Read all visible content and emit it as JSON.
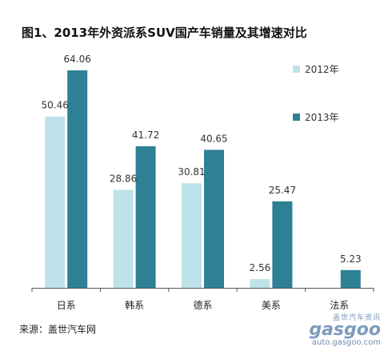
{
  "title": "图1、2013年外资派系SUV国产车销量及其增速对比",
  "source": "来源：盖世汽车网",
  "watermark": {
    "cn": "盖世汽车资讯",
    "logo": "gasgoo",
    "url": "auto.gasgoo.com"
  },
  "colors": {
    "series2012": "#bee2e9",
    "series2013": "#2e8094",
    "axis": "#555555"
  },
  "chart_data": {
    "type": "bar",
    "categories": [
      "日系",
      "韩系",
      "德系",
      "美系",
      "法系"
    ],
    "series": [
      {
        "name": "2012年",
        "values": [
          50.46,
          28.86,
          30.81,
          2.56,
          null
        ]
      },
      {
        "name": "2013年",
        "values": [
          64.06,
          41.72,
          40.65,
          25.47,
          5.23
        ]
      }
    ],
    "ylim": [
      0,
      64.06
    ],
    "grid": false,
    "legend": "right"
  }
}
